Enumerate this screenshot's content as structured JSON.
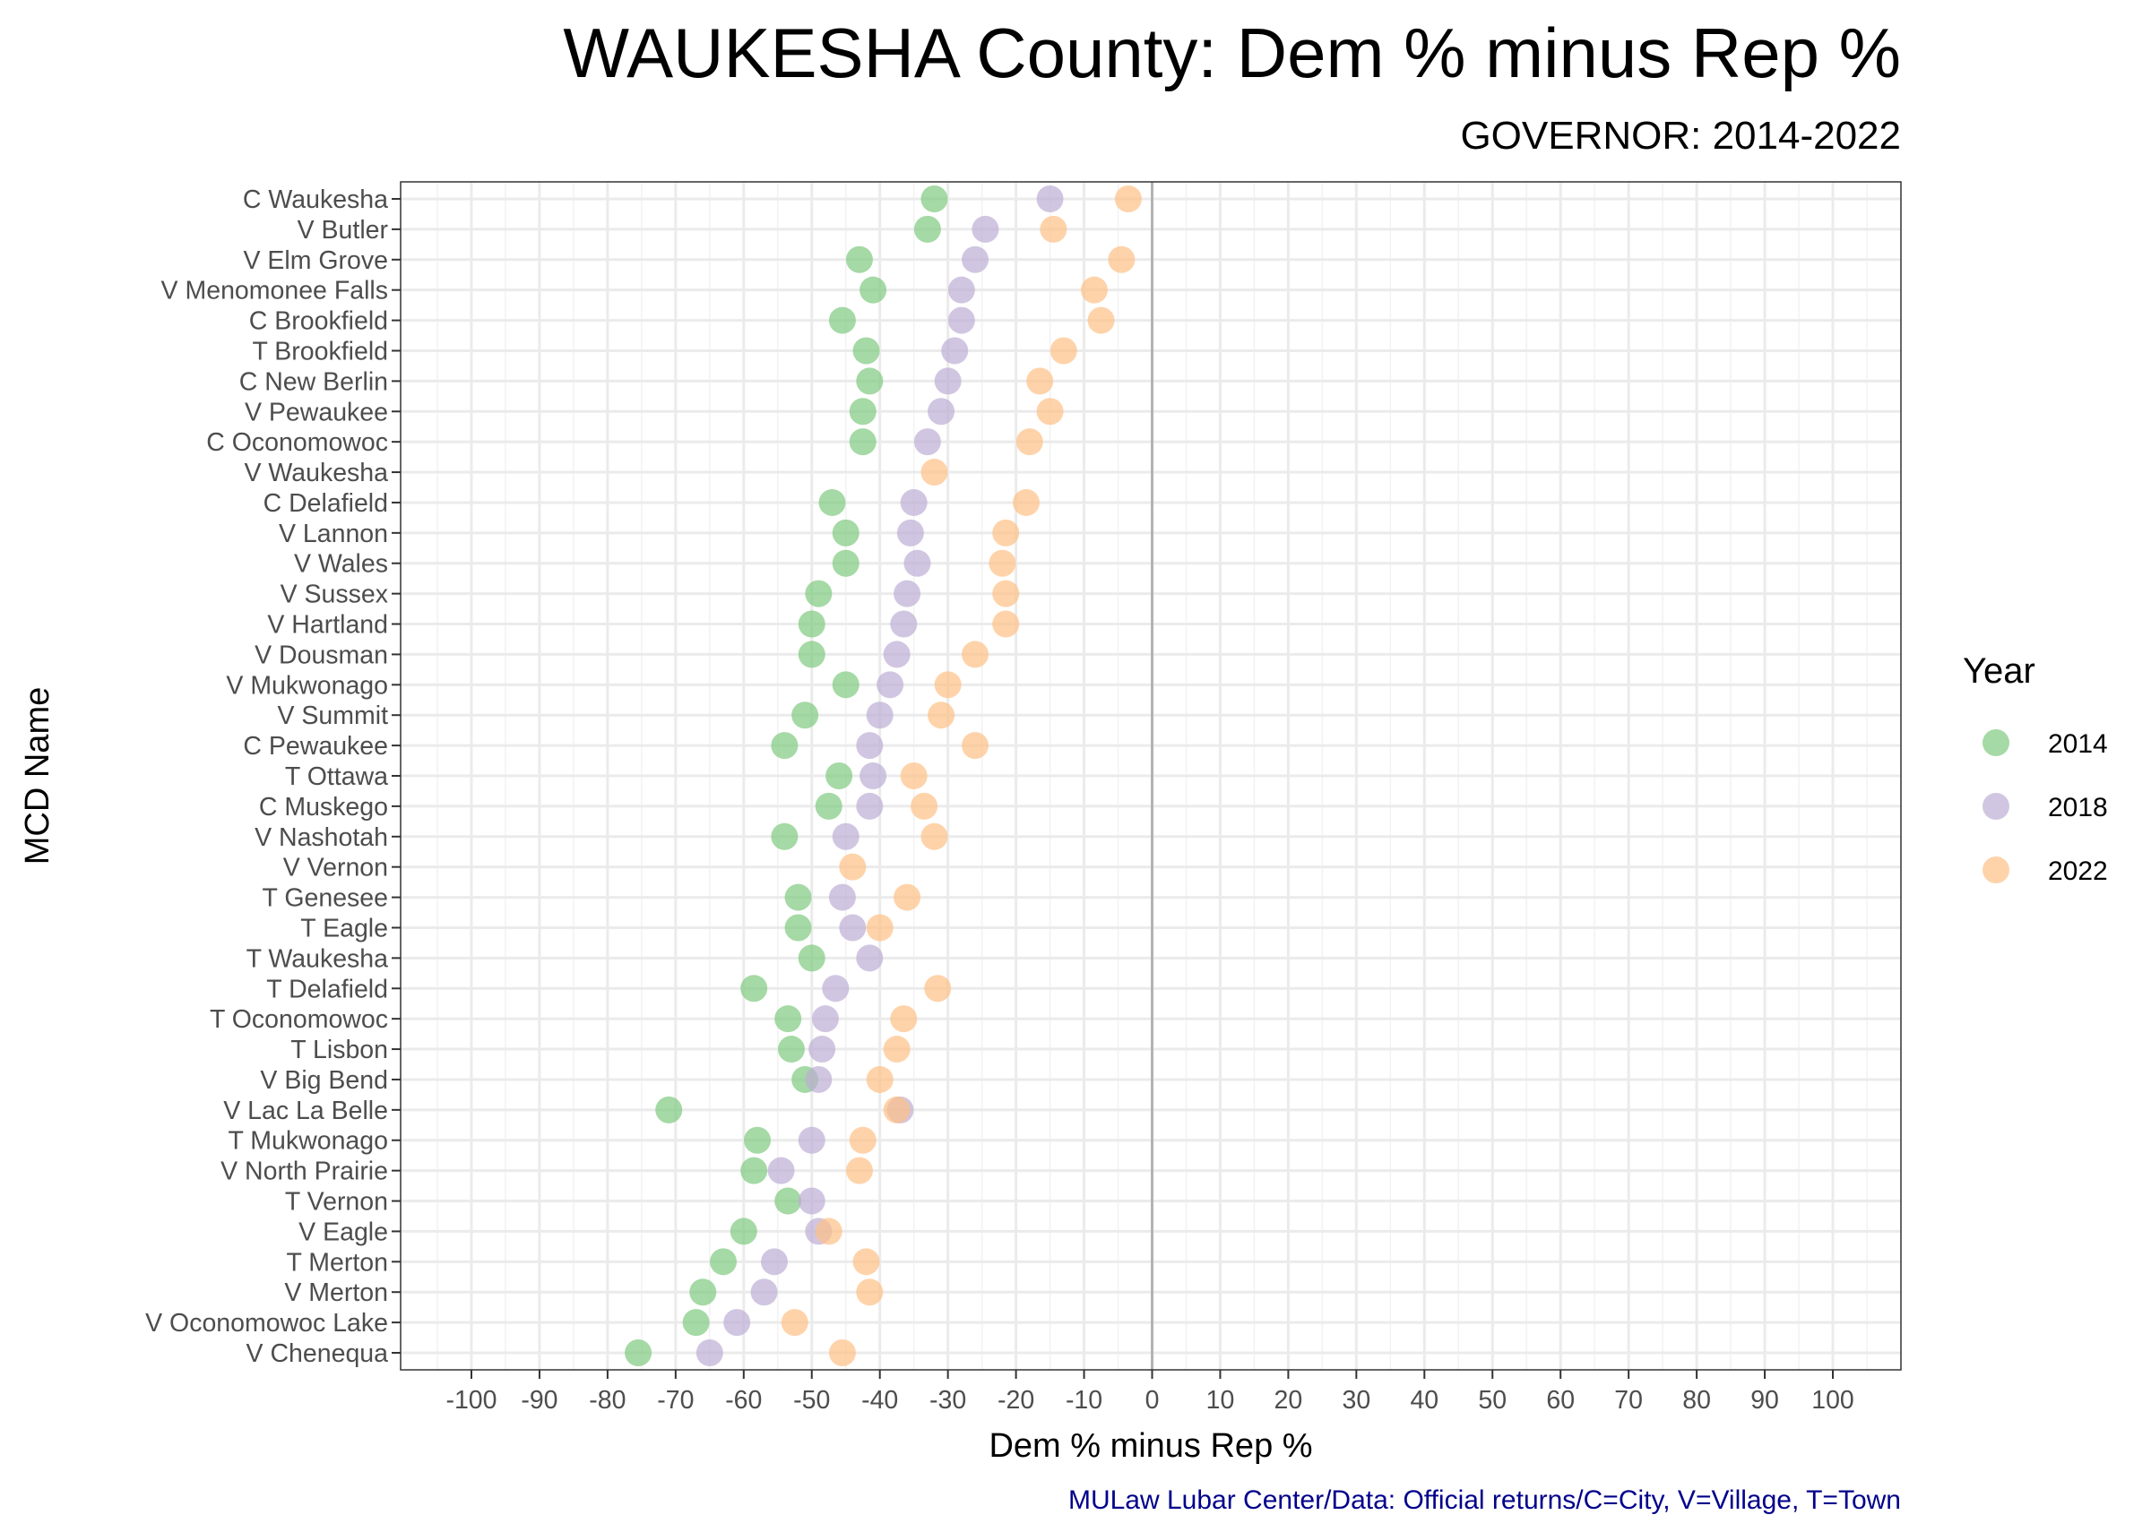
{
  "chart_data": {
    "type": "scatter",
    "title": "WAUKESHA County: Dem % minus Rep %",
    "subtitle": "GOVERNOR: 2014-2022",
    "xlabel": "Dem % minus Rep %",
    "ylabel": "MCD Name",
    "caption": "MULaw Lubar Center/Data: Official returns/C=City, V=Village, T=Town",
    "xlim": [
      -100,
      100
    ],
    "x_ticks": [
      "-100",
      "-90",
      "-80",
      "-70",
      "-60",
      "-50",
      "-40",
      "-30",
      "-20",
      "-10",
      "0",
      "10",
      "20",
      "30",
      "40",
      "50",
      "60",
      "70",
      "80",
      "90",
      "100"
    ],
    "reference_line_x": 0,
    "grid": true,
    "legend": {
      "title": "Year",
      "position": "right"
    },
    "categories": [
      "C Waukesha",
      "V Butler",
      "V Elm Grove",
      "V Menomonee Falls",
      "C Brookfield",
      "T Brookfield",
      "C New Berlin",
      "V Pewaukee",
      "C Oconomowoc",
      "V Waukesha",
      "C Delafield",
      "V Lannon",
      "V Wales",
      "V Sussex",
      "V Hartland",
      "V Dousman",
      "V Mukwonago",
      "V Summit",
      "C Pewaukee",
      "T Ottawa",
      "C Muskego",
      "V Nashotah",
      "V Vernon",
      "T Genesee",
      "T Eagle",
      "T Waukesha",
      "T Delafield",
      "T Oconomowoc",
      "T Lisbon",
      "V Big Bend",
      "V Lac La Belle",
      "T Mukwonago",
      "V North Prairie",
      "T Vernon",
      "V Eagle",
      "T Merton",
      "V Merton",
      "V Oconomowoc Lake",
      "V Chenequa"
    ],
    "series": [
      {
        "name": "2014",
        "color": "#7fc97f",
        "values": [
          -32.0,
          -33.0,
          -43.0,
          -41.0,
          -45.5,
          -42.0,
          -41.5,
          -42.5,
          -42.5,
          null,
          -47.0,
          -45.0,
          -45.0,
          -49.0,
          -50.0,
          -50.0,
          -45.0,
          -51.0,
          -54.0,
          -46.0,
          -47.5,
          -54.0,
          null,
          -52.0,
          -52.0,
          -50.0,
          -58.5,
          -53.5,
          -53.0,
          -51.0,
          -71.0,
          -58.0,
          -58.5,
          -53.5,
          -60.0,
          -63.0,
          -66.0,
          -67.0,
          -75.5
        ]
      },
      {
        "name": "2018",
        "color": "#beaed4",
        "values": [
          -15.0,
          -24.5,
          -26.0,
          -28.0,
          -28.0,
          -29.0,
          -30.0,
          -31.0,
          -33.0,
          null,
          -35.0,
          -35.5,
          -34.5,
          -36.0,
          -36.5,
          -37.5,
          -38.5,
          -40.0,
          -41.5,
          -41.0,
          -41.5,
          -45.0,
          null,
          -45.5,
          -44.0,
          -41.5,
          -46.5,
          -48.0,
          -48.5,
          -49.0,
          -37.0,
          -50.0,
          -54.5,
          -50.0,
          -49.0,
          -55.5,
          -57.0,
          -61.0,
          -65.0
        ]
      },
      {
        "name": "2022",
        "color": "#fdc086",
        "values": [
          -3.5,
          -14.5,
          -4.5,
          -8.5,
          -7.5,
          -13.0,
          -16.5,
          -15.0,
          -18.0,
          -32.0,
          -18.5,
          -21.5,
          -22.0,
          -21.5,
          -21.5,
          -26.0,
          -30.0,
          -31.0,
          -26.0,
          -35.0,
          -33.5,
          -32.0,
          -44.0,
          -36.0,
          -40.0,
          null,
          -31.5,
          -36.5,
          -37.5,
          -40.0,
          -37.5,
          -42.5,
          -43.0,
          null,
          -47.5,
          -42.0,
          -41.5,
          -52.5,
          -45.5
        ]
      }
    ]
  }
}
